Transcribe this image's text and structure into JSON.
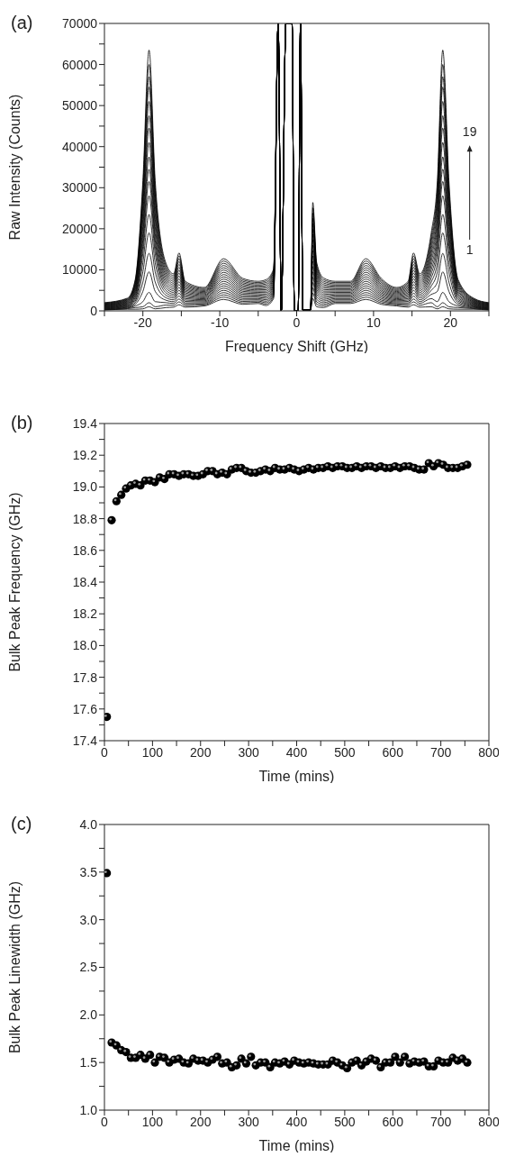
{
  "chart_data": [
    {
      "type": "line",
      "title": "(a)",
      "xlabel": "Frequency Shift (GHz)",
      "ylabel": "Raw Intensity (Counts)",
      "xlim": [
        -25,
        25
      ],
      "xticks": [
        {
          "value": -25,
          "label": null
        },
        -20,
        {
          "value": -15,
          "label": null
        },
        -10,
        {
          "value": -5,
          "label": null
        },
        0,
        {
          "value": 5,
          "label": null
        },
        10,
        {
          "value": 15,
          "label": null
        },
        20,
        {
          "value": 25,
          "label": null
        }
      ],
      "ylim": [
        0,
        70000
      ],
      "yticks": [
        0,
        {
          "value": 5000,
          "label": null
        },
        10000,
        {
          "value": 15000,
          "label": null
        },
        20000,
        {
          "value": 25000,
          "label": null
        },
        30000,
        {
          "value": 35000,
          "label": null
        },
        40000,
        {
          "value": 45000,
          "label": null
        },
        50000,
        {
          "value": 55000,
          "label": null
        },
        60000,
        {
          "value": 65000,
          "label": null
        },
        70000
      ],
      "x": [
        -25,
        -22,
        -21,
        -20,
        -19.2,
        -18.4,
        -17,
        -16,
        -15.3,
        -14.5,
        -12,
        -9.5,
        -7,
        -5,
        -4,
        -3,
        -2.4,
        -2,
        -1.4,
        -0.6,
        -0.3,
        0.2,
        0.5,
        0.8,
        1.8,
        2.1,
        2.6,
        3.5,
        5,
        7,
        9,
        11,
        13,
        14.5,
        15.2,
        16,
        17.5,
        18.3,
        19,
        19.8,
        21,
        23,
        25
      ],
      "annotations": [
        "19",
        "1"
      ],
      "series": [
        {
          "color": "#000000",
          "values": [
            200,
            400,
            400,
            500,
            1000,
            500,
            800,
            900,
            1500,
            900,
            1200,
            2800,
            1600,
            1800,
            1300,
            3000,
            70000,
            0,
            70000,
            70000,
            0,
            0,
            70000,
            200,
            200,
            3000,
            1000,
            800,
            1800,
            1800,
            2800,
            1600,
            1200,
            900,
            1500,
            900,
            1000,
            500,
            1000,
            500,
            400,
            400,
            200
          ]
        },
        {
          "color": "#000000",
          "values": [
            300,
            550,
            800,
            1000,
            2000,
            1000,
            1400,
            1350,
            2200,
            1250,
            1450,
            3350,
            1950,
            2100,
            1650,
            3400,
            70000,
            0,
            70000,
            70000,
            0,
            0,
            70000,
            200,
            200,
            4300,
            1600,
            1200,
            2100,
            2100,
            3350,
            1950,
            1450,
            1250,
            2200,
            1350,
            2000,
            1000,
            2000,
            1000,
            800,
            550,
            300
          ]
        },
        {
          "color": "#000000",
          "values": [
            400,
            700,
            1200,
            2250,
            4500,
            2250,
            2000,
            1800,
            2900,
            1600,
            1700,
            3900,
            2300,
            2400,
            2000,
            3800,
            70000,
            0,
            70000,
            70000,
            0,
            0,
            70000,
            200,
            200,
            5600,
            2200,
            1600,
            2400,
            2400,
            3900,
            2300,
            1700,
            1600,
            2900,
            1800,
            3000,
            2250,
            4500,
            2250,
            1200,
            700,
            400
          ]
        },
        {
          "color": "#000000",
          "values": [
            500,
            850,
            1600,
            4750,
            9500,
            4750,
            2600,
            2250,
            3600,
            1950,
            1950,
            4450,
            2650,
            2700,
            2350,
            4200,
            70000,
            0,
            70000,
            70000,
            0,
            0,
            70000,
            200,
            200,
            6900,
            2800,
            2000,
            2700,
            2700,
            4450,
            2650,
            1950,
            1950,
            3600,
            2250,
            4000,
            4750,
            9500,
            4750,
            1600,
            850,
            500
          ]
        },
        {
          "color": "#000000",
          "values": [
            600,
            1000,
            2000,
            7000,
            14000,
            7000,
            3200,
            2700,
            4300,
            2300,
            2200,
            5000,
            3000,
            3000,
            2700,
            4600,
            70000,
            0,
            70000,
            70000,
            0,
            0,
            70000,
            200,
            200,
            8200,
            3400,
            2400,
            3000,
            3000,
            5000,
            3000,
            2200,
            2300,
            4300,
            2700,
            5000,
            7000,
            14000,
            7000,
            2000,
            1000,
            600
          ]
        },
        {
          "color": "#000000",
          "values": [
            700,
            1150,
            2400,
            9500,
            19000,
            9500,
            3800,
            3150,
            5000,
            2650,
            2450,
            5550,
            3350,
            3300,
            3050,
            5000,
            70000,
            0,
            70000,
            70000,
            0,
            0,
            70000,
            200,
            200,
            9500,
            4000,
            2800,
            3300,
            3300,
            5550,
            3350,
            2450,
            2650,
            5000,
            3150,
            6000,
            9500,
            19000,
            9500,
            2400,
            1150,
            700
          ]
        },
        {
          "color": "#000000",
          "values": [
            800,
            1300,
            2800,
            11750,
            23500,
            11750,
            4400,
            3600,
            5700,
            3000,
            2700,
            6100,
            3700,
            3600,
            3400,
            5400,
            70000,
            0,
            70000,
            70000,
            0,
            0,
            70000,
            200,
            200,
            10800,
            4600,
            3200,
            3600,
            3600,
            6100,
            3700,
            2700,
            3000,
            5700,
            3600,
            7000,
            11750,
            23500,
            11750,
            2800,
            1300,
            800
          ]
        },
        {
          "color": "#000000",
          "values": [
            900,
            1450,
            3200,
            14000,
            28000,
            14000,
            5000,
            4050,
            6400,
            3350,
            2950,
            6650,
            4050,
            3900,
            3750,
            5800,
            70000,
            0,
            70000,
            70000,
            0,
            0,
            70000,
            200,
            200,
            12100,
            5200,
            3600,
            3900,
            3900,
            6650,
            4050,
            2950,
            3350,
            6400,
            4050,
            8000,
            14000,
            28000,
            14000,
            3200,
            1450,
            900
          ]
        },
        {
          "color": "#000000",
          "values": [
            1000,
            1600,
            3600,
            15750,
            31500,
            15750,
            5600,
            4500,
            7100,
            3700,
            3200,
            7200,
            4400,
            4200,
            4100,
            6200,
            70000,
            0,
            70000,
            70000,
            0,
            0,
            70000,
            200,
            200,
            13400,
            5800,
            4000,
            4200,
            4200,
            7200,
            4400,
            3200,
            3700,
            7100,
            4500,
            9000,
            15750,
            31500,
            15750,
            3600,
            1600,
            1000
          ]
        },
        {
          "color": "#000000",
          "values": [
            1100,
            1750,
            4000,
            17250,
            34500,
            17250,
            6200,
            4950,
            7800,
            4050,
            3450,
            7750,
            4750,
            4500,
            4450,
            6600,
            70000,
            0,
            70000,
            70000,
            0,
            0,
            70000,
            200,
            200,
            14700,
            6400,
            4400,
            4500,
            4500,
            7750,
            4750,
            3450,
            4050,
            7800,
            4950,
            10000,
            17250,
            34500,
            17250,
            4000,
            1750,
            1100
          ]
        },
        {
          "color": "#000000",
          "values": [
            1200,
            1900,
            4400,
            18750,
            37500,
            18750,
            6800,
            5400,
            8500,
            4400,
            3700,
            8300,
            5100,
            4800,
            4800,
            7000,
            70000,
            0,
            70000,
            70000,
            0,
            0,
            70000,
            200,
            200,
            16000,
            7000,
            4800,
            4800,
            4800,
            8300,
            5100,
            3700,
            4400,
            8500,
            5400,
            11000,
            18750,
            37500,
            18750,
            4400,
            1900,
            1200
          ]
        },
        {
          "color": "#000000",
          "values": [
            1300,
            2050,
            4800,
            20500,
            41000,
            20500,
            7400,
            5850,
            9200,
            4750,
            3950,
            8850,
            5450,
            5100,
            5150,
            7400,
            70000,
            0,
            70000,
            70000,
            0,
            0,
            70000,
            200,
            200,
            17300,
            7600,
            5200,
            5100,
            5100,
            8850,
            5450,
            3950,
            4750,
            9200,
            5850,
            12000,
            20500,
            41000,
            20500,
            4800,
            2050,
            1300
          ]
        },
        {
          "color": "#000000",
          "values": [
            1400,
            2200,
            5200,
            22250,
            44500,
            22250,
            8000,
            6300,
            9900,
            5100,
            4200,
            9400,
            5800,
            5400,
            5500,
            7800,
            70000,
            0,
            70000,
            70000,
            0,
            0,
            70000,
            200,
            200,
            18600,
            8200,
            5600,
            5400,
            5400,
            9400,
            5800,
            4200,
            5100,
            9900,
            6300,
            13000,
            22250,
            44500,
            22250,
            5200,
            2200,
            1400
          ]
        },
        {
          "color": "#000000",
          "values": [
            1500,
            2350,
            5600,
            23750,
            47500,
            23750,
            8600,
            6750,
            10600,
            5450,
            4450,
            9950,
            6150,
            5700,
            5850,
            8200,
            70000,
            0,
            70000,
            70000,
            0,
            0,
            70000,
            200,
            200,
            19900,
            8800,
            6000,
            5700,
            5700,
            9950,
            6150,
            4450,
            5450,
            10600,
            6750,
            14000,
            23750,
            47500,
            23750,
            5600,
            2350,
            1500
          ]
        },
        {
          "color": "#000000",
          "values": [
            1600,
            2500,
            6000,
            25500,
            51000,
            25500,
            9200,
            7200,
            11300,
            5800,
            4700,
            10500,
            6500,
            6000,
            6200,
            8600,
            70000,
            0,
            70000,
            70000,
            0,
            0,
            70000,
            200,
            200,
            21200,
            9400,
            6400,
            6000,
            6000,
            10500,
            6500,
            4700,
            5800,
            11300,
            7200,
            15000,
            25500,
            51000,
            25500,
            6000,
            2500,
            1600
          ]
        },
        {
          "color": "#000000",
          "values": [
            1700,
            2650,
            6400,
            27250,
            54500,
            27250,
            9800,
            7650,
            12000,
            6150,
            4950,
            11050,
            6850,
            6300,
            6550,
            9000,
            70000,
            0,
            70000,
            70000,
            0,
            0,
            70000,
            200,
            200,
            22500,
            10000,
            6800,
            6300,
            6300,
            11050,
            6850,
            4950,
            6150,
            12000,
            7650,
            16000,
            27250,
            54500,
            27250,
            6400,
            2650,
            1700
          ]
        },
        {
          "color": "#000000",
          "values": [
            1800,
            2800,
            6800,
            28500,
            57000,
            28500,
            10400,
            8100,
            12700,
            6500,
            5200,
            11600,
            7200,
            6600,
            6900,
            9400,
            70000,
            0,
            70000,
            70000,
            0,
            0,
            70000,
            200,
            200,
            23800,
            10600,
            7200,
            6600,
            6600,
            11600,
            7200,
            5200,
            6500,
            12700,
            8100,
            17000,
            28500,
            57000,
            28500,
            6800,
            2800,
            1800
          ]
        },
        {
          "color": "#000000",
          "values": [
            1900,
            2950,
            7200,
            30000,
            60000,
            30000,
            11000,
            8550,
            13400,
            6850,
            5450,
            12150,
            7550,
            6900,
            7250,
            9800,
            70000,
            0,
            70000,
            70000,
            0,
            0,
            70000,
            200,
            200,
            25100,
            11200,
            7600,
            6900,
            6900,
            12150,
            7550,
            5450,
            6850,
            13400,
            8550,
            18000,
            30000,
            60000,
            30000,
            7200,
            2950,
            1900
          ]
        },
        {
          "color": "#000000",
          "values": [
            2000,
            3100,
            7600,
            31750,
            63500,
            31750,
            11600,
            9000,
            14100,
            7200,
            5700,
            12700,
            7900,
            7200,
            7600,
            10200,
            70000,
            0,
            70000,
            70000,
            0,
            0,
            70000,
            200,
            200,
            26400,
            11800,
            8000,
            7200,
            7200,
            12700,
            7900,
            5700,
            7200,
            14100,
            9000,
            19000,
            31750,
            63500,
            31750,
            7600,
            3100,
            2000
          ]
        }
      ]
    },
    {
      "type": "scatter",
      "title": "(b)",
      "xlabel": "Time (mins)",
      "ylabel": "Bulk Peak Frequency (GHz)",
      "marker": "circle",
      "xlim": [
        0,
        800
      ],
      "xticks": [
        0,
        {
          "value": 50,
          "label": null
        },
        100,
        {
          "value": 150,
          "label": null
        },
        200,
        {
          "value": 250,
          "label": null
        },
        300,
        {
          "value": 350,
          "label": null
        },
        400,
        {
          "value": 450,
          "label": null
        },
        500,
        {
          "value": 550,
          "label": null
        },
        600,
        {
          "value": 650,
          "label": null
        },
        700,
        {
          "value": 750,
          "label": null
        },
        800
      ],
      "ylim": [
        17.4,
        19.4
      ],
      "yticks": [
        17.4,
        {
          "value": 17.5,
          "label": null
        },
        17.6,
        {
          "value": 17.7,
          "label": null
        },
        17.8,
        {
          "value": 17.9,
          "label": null
        },
        {
          "value": 18,
          "label": "18.0"
        },
        {
          "value": 18.1,
          "label": null
        },
        18.2,
        {
          "value": 18.3,
          "label": null
        },
        18.4,
        {
          "value": 18.5,
          "label": null
        },
        18.6,
        {
          "value": 18.7,
          "label": null
        },
        18.8,
        {
          "value": 18.9,
          "label": null
        },
        {
          "value": 19,
          "label": "19.0"
        },
        {
          "value": 19.1,
          "label": null
        },
        19.2,
        {
          "value": 19.3,
          "label": null
        },
        19.4
      ],
      "x": [
        5,
        15,
        25,
        35,
        45,
        55,
        65,
        75,
        85,
        95,
        105,
        115,
        125,
        135,
        145,
        155,
        165,
        175,
        185,
        195,
        205,
        215,
        225,
        235,
        245,
        255,
        265,
        275,
        285,
        295,
        305,
        315,
        325,
        335,
        345,
        355,
        365,
        375,
        385,
        395,
        405,
        415,
        425,
        435,
        445,
        455,
        465,
        475,
        485,
        495,
        505,
        515,
        525,
        535,
        545,
        555,
        565,
        575,
        585,
        595,
        605,
        615,
        625,
        635,
        645,
        655,
        665,
        675,
        685,
        695,
        705,
        715,
        725,
        735,
        745,
        755
      ],
      "series": [
        {
          "color": "#000000",
          "values": [
            17.55,
            18.79,
            18.91,
            18.95,
            18.99,
            19.01,
            19.02,
            19.01,
            19.04,
            19.04,
            19.03,
            19.06,
            19.05,
            19.08,
            19.08,
            19.07,
            19.08,
            19.08,
            19.07,
            19.07,
            19.08,
            19.1,
            19.1,
            19.08,
            19.09,
            19.08,
            19.11,
            19.12,
            19.12,
            19.1,
            19.09,
            19.09,
            19.1,
            19.11,
            19.1,
            19.12,
            19.11,
            19.11,
            19.12,
            19.11,
            19.1,
            19.11,
            19.12,
            19.11,
            19.12,
            19.12,
            19.13,
            19.12,
            19.13,
            19.13,
            19.12,
            19.12,
            19.13,
            19.12,
            19.13,
            19.13,
            19.12,
            19.13,
            19.12,
            19.12,
            19.13,
            19.12,
            19.13,
            19.13,
            19.12,
            19.11,
            19.11,
            19.15,
            19.13,
            19.15,
            19.14,
            19.12,
            19.12,
            19.12,
            19.13,
            19.14
          ]
        }
      ]
    },
    {
      "type": "scatter",
      "title": "(c)",
      "xlabel": "Time (mins)",
      "ylabel": "Bulk Peak Linewidth (GHz)",
      "marker": "circle",
      "xlim": [
        0,
        800
      ],
      "xticks": [
        0,
        {
          "value": 50,
          "label": null
        },
        100,
        {
          "value": 150,
          "label": null
        },
        200,
        {
          "value": 250,
          "label": null
        },
        300,
        {
          "value": 350,
          "label": null
        },
        400,
        {
          "value": 450,
          "label": null
        },
        500,
        {
          "value": 550,
          "label": null
        },
        600,
        {
          "value": 650,
          "label": null
        },
        700,
        {
          "value": 750,
          "label": null
        },
        800
      ],
      "ylim": [
        1,
        4
      ],
      "yticks": [
        {
          "value": 1,
          "label": "1.0"
        },
        {
          "value": 1.25,
          "label": null
        },
        1.5,
        {
          "value": 1.75,
          "label": null
        },
        {
          "value": 2,
          "label": "2.0"
        },
        {
          "value": 2.25,
          "label": null
        },
        2.5,
        {
          "value": 2.75,
          "label": null
        },
        {
          "value": 3,
          "label": "3.0"
        },
        {
          "value": 3.25,
          "label": null
        },
        3.5,
        {
          "value": 3.75,
          "label": null
        },
        {
          "value": 4,
          "label": "4.0"
        }
      ],
      "x": [
        5,
        15,
        25,
        35,
        45,
        55,
        65,
        75,
        85,
        95,
        105,
        115,
        125,
        135,
        145,
        155,
        165,
        175,
        185,
        195,
        205,
        215,
        225,
        235,
        245,
        255,
        265,
        275,
        285,
        295,
        305,
        315,
        325,
        335,
        345,
        355,
        365,
        375,
        385,
        395,
        405,
        415,
        425,
        435,
        445,
        455,
        465,
        475,
        485,
        495,
        505,
        515,
        525,
        535,
        545,
        555,
        565,
        575,
        585,
        595,
        605,
        615,
        625,
        635,
        645,
        655,
        665,
        675,
        685,
        695,
        705,
        715,
        725,
        735,
        745,
        755
      ],
      "series": [
        {
          "color": "#000000",
          "values": [
            3.49,
            1.71,
            1.68,
            1.63,
            1.61,
            1.55,
            1.55,
            1.58,
            1.54,
            1.58,
            1.5,
            1.56,
            1.55,
            1.5,
            1.53,
            1.54,
            1.5,
            1.49,
            1.54,
            1.52,
            1.52,
            1.5,
            1.53,
            1.56,
            1.49,
            1.5,
            1.45,
            1.47,
            1.54,
            1.49,
            1.56,
            1.47,
            1.5,
            1.5,
            1.45,
            1.5,
            1.49,
            1.51,
            1.48,
            1.52,
            1.5,
            1.49,
            1.5,
            1.49,
            1.48,
            1.48,
            1.48,
            1.52,
            1.5,
            1.47,
            1.44,
            1.5,
            1.52,
            1.47,
            1.51,
            1.54,
            1.52,
            1.45,
            1.5,
            1.5,
            1.56,
            1.5,
            1.56,
            1.49,
            1.51,
            1.5,
            1.51,
            1.46,
            1.46,
            1.52,
            1.5,
            1.5,
            1.55,
            1.52,
            1.54,
            1.5
          ]
        }
      ]
    }
  ]
}
